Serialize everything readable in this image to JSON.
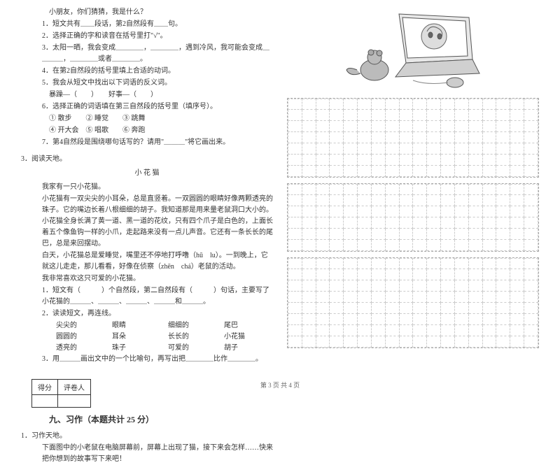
{
  "left": {
    "intro": "小朋友，你们猜猜，我是什么？",
    "q1": "1．短文共有＿＿段话，第2自然段有＿＿句。",
    "q2": "2．选择正确的字和读音在括号里打\"√\"。",
    "q3": "3．太阳一晒，我会变成＿＿＿＿，＿＿＿＿，遇到冷风，我可能会变成＿＿＿＿，＿＿＿＿或者＿＿＿＿。",
    "q4": "4．在第2自然段的括号里填上合适的动词。",
    "q5": "5．我会从短文中找出以下词语的反义词。",
    "q5_words": "暴躁—（　　）　　好事—（　　）",
    "q6": "6．选择正确的词语填在第三自然段的括号里（填序号）。",
    "q6_opt1": "① 散步　　② 睡觉　　③ 跳舞",
    "q6_opt2": "④ 开大会　⑤ 唱歌　　⑥ 奔跑",
    "q7": "7．第4自然段是围绕哪句话写的？请用\"＿＿＿\"将它画出来。",
    "read_num": "3．阅读天地。",
    "read_title": "小 花 猫",
    "read_p1": "我家有一只小花猫。",
    "read_p2": "小花猫有一双尖尖的小耳朵，总是直竖着。一双圆圆的眼睛好像两颗透亮的珠子。它的嘴边长着八根细细的胡子。我知道那是用来量老鼠洞口大小的。小花猫全身长满了黄一道、黑一道的花纹，只有四个爪子是白色的，上面长着五个像鱼钩一样的小爪，走起路来没有一点儿声音。它还有一条长长的尾巴，总是来回摆动。",
    "read_p3": "白天，小花猫总是爱睡觉，嘴里还不停地打呼噜（hū　lu）。一到晚上，它就这儿走走，那儿看看，好像在侦察（zhēn　chá）老鼠的活动。",
    "read_p4": "我非常喜欢这只可爱的小花猫。",
    "read_q1": "1．短文有（　　　）个自然段，第二自然段有（　　　）句话，主要写了小花猫的＿＿＿、＿＿＿、＿＿＿、＿＿＿和＿＿＿。",
    "read_q2": "2．读读短文，再连线。",
    "match": {
      "r1c1": "尖尖的",
      "r1c2": "眼睛",
      "r1c3": "细细的",
      "r1c4": "尾巴",
      "r2c1": "圆圆的",
      "r2c2": "耳朵",
      "r2c3": "长长的",
      "r2c4": "小花猫",
      "r3c1": "透亮的",
      "r3c2": "珠子",
      "r3c3": "可爱的",
      "r3c4": "胡子"
    },
    "read_q3": "3．用＿＿＿画出文中的一个比喻句，再写出把＿＿＿＿比作＿＿＿＿。",
    "score_label1": "得分",
    "score_label2": "评卷人",
    "section_title": "九、习作（本题共计 25 分）",
    "write_num": "1．习作天地。",
    "write_prompt": "下面图中的小老鼠在电脑屏幕前，屏幕上出现了猫，接下来会怎样……快来把你想到的故事写下来吧！"
  },
  "footer": "第 3 页 共 4 页",
  "grid": {
    "rows_section1": 7,
    "rows_section2": 6,
    "rows_section3": 8,
    "cols": 18
  }
}
